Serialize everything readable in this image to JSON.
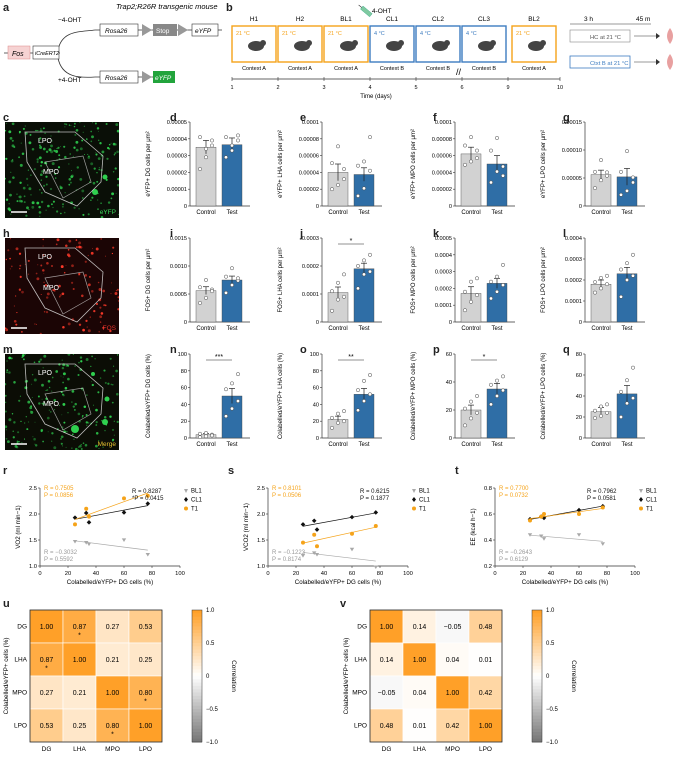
{
  "panel_labels": {
    "a": "a",
    "b": "b",
    "c": "c",
    "d": "d",
    "e": "e",
    "f": "f",
    "g": "g",
    "h": "h",
    "i": "i",
    "j": "j",
    "k": "k",
    "l": "l",
    "m": "m",
    "n": "n",
    "o": "o",
    "p": "p",
    "q": "q",
    "r": "r",
    "s": "s",
    "t": "t",
    "u": "u",
    "v": "v"
  },
  "panel_a": {
    "title": "Trap2;R26R transgenic mouse",
    "minus": "−4-OHT",
    "plus": "+4-OHT",
    "fos": "Fos",
    "icreer": "iCreERT2",
    "rosa": "Rosa26",
    "stop": "Stop",
    "eyfp": "eYFP"
  },
  "panel_b": {
    "injection": "4-OHT",
    "axis": "Time (days)",
    "days": [
      "1",
      "2",
      "3",
      "4",
      "5",
      "6",
      "9",
      "10"
    ],
    "sessions": [
      {
        "name": "H1",
        "temp": "21 °C",
        "context": "Context A"
      },
      {
        "name": "H2",
        "temp": "21 °C",
        "context": "Context A"
      },
      {
        "name": "BL1",
        "temp": "21 °C",
        "context": "Context A"
      },
      {
        "name": "CL1",
        "temp": "4 °C",
        "context": "Context B"
      },
      {
        "name": "CL2",
        "temp": "4 °C",
        "context": "Context B"
      },
      {
        "name": "CL3",
        "temp": "4 °C",
        "context": "Context B"
      },
      {
        "name": "BL2",
        "temp": "21 °C",
        "context": "Context A"
      }
    ],
    "tail_time1": "3 h",
    "tail_time2": "45 m",
    "hc": "HC at 21 °C",
    "ctxt": "Ctxt B at 21 °C"
  },
  "images": {
    "c": {
      "lpo": "LPO",
      "mpo": "MPO",
      "stain": "eYFP"
    },
    "h": {
      "lpo": "LPO",
      "mpo": "MPO",
      "stain": "FOS"
    },
    "m": {
      "lpo": "LPO",
      "mpo": "MPO",
      "stain": "Merge"
    }
  },
  "colors": {
    "control": "#d2d2d2",
    "test": "#2f6ea6",
    "orange": "#f5a31a",
    "blue": "#3d7cc0",
    "eyfp_green": "#1fae3c",
    "fos_red": "#e3322b"
  },
  "chart_data": [
    {
      "id": "d",
      "type": "bar",
      "categories": [
        "Control",
        "Test"
      ],
      "values": [
        3.5e-05,
        3.65e-05
      ],
      "errors": [
        4e-06,
        4e-06
      ],
      "ylim": [
        0,
        5e-05
      ],
      "ticks": [
        "0",
        "0.00001",
        "0.00002",
        "0.00003",
        "0.00004",
        "0.00005"
      ],
      "ylabel": "eYFP+ DG cells per μm²",
      "points": [
        [
          2.2e-05,
          3.4e-05,
          3.9e-05,
          4.1e-05,
          2.9e-05,
          3.6e-05
        ],
        [
          2.9e-05,
          3.3e-05,
          3.9e-05,
          4.1e-05,
          3.6e-05,
          4.2e-05
        ]
      ]
    },
    {
      "id": "e",
      "type": "bar",
      "categories": [
        "Control",
        "Test"
      ],
      "values": [
        4e-05,
        3.75e-05
      ],
      "errors": [
        1e-05,
        8e-06
      ],
      "ylim": [
        0,
        0.0001
      ],
      "ticks": [
        "0",
        "0.00002",
        "0.00004",
        "0.00006",
        "0.00008",
        "0.0001"
      ],
      "ylabel": "eYFP+ LHA cells per μm²",
      "points": [
        [
          2e-05,
          2.5e-05,
          4.4e-05,
          5.1e-05,
          7.1e-05,
          3.2e-05
        ],
        [
          1.2e-05,
          2.1e-05,
          4.2e-05,
          4.8e-05,
          5.3e-05,
          8.2e-05
        ]
      ]
    },
    {
      "id": "f",
      "type": "bar",
      "categories": [
        "Control",
        "Test"
      ],
      "values": [
        6.2e-05,
        5e-05
      ],
      "errors": [
        8e-06,
        1e-05
      ],
      "ylim": [
        0,
        0.0001
      ],
      "ticks": [
        "0",
        "0.00002",
        "0.00004",
        "0.00006",
        "0.00008",
        "0.0001"
      ],
      "ylabel": "eYFP+ MPO cells per μm²",
      "points": [
        [
          4.9e-05,
          5.3e-05,
          6.6e-05,
          7.2e-05,
          8.2e-05,
          5.7e-05
        ],
        [
          2.8e-05,
          4.1e-05,
          4.7e-05,
          6.6e-05,
          8.1e-05,
          3.6e-05
        ]
      ]
    },
    {
      "id": "g",
      "type": "bar",
      "categories": [
        "Control",
        "Test"
      ],
      "values": [
        5.6e-05,
        5.2e-05
      ],
      "errors": [
        8e-06,
        1.5e-05
      ],
      "ylim": [
        0,
        0.00015
      ],
      "ticks": [
        "0",
        "0.00005",
        "0.00010",
        "0.00015"
      ],
      "ylabel": "eYFP+ LPO cells per μm²",
      "points": [
        [
          3.2e-05,
          4.6e-05,
          5.4e-05,
          6.1e-05,
          8.2e-05,
          6e-05
        ],
        [
          2e-05,
          2.7e-05,
          4.2e-05,
          6.1e-05,
          9.8e-05,
          5.1e-05
        ]
      ]
    },
    {
      "id": "i",
      "type": "bar",
      "categories": [
        "Control",
        "Test"
      ],
      "values": [
        0.00056,
        0.00075
      ],
      "errors": [
        7e-05,
        7e-05
      ],
      "ylim": [
        0,
        0.0015
      ],
      "ticks": [
        "0",
        "0.0005",
        "0.0010",
        "0.0015"
      ],
      "ylabel": "FOS+ DG cells per μm²",
      "points": [
        [
          0.00034,
          0.00043,
          0.00058,
          0.00062,
          0.00075,
          0.00055
        ],
        [
          0.00052,
          0.00066,
          0.00074,
          0.00081,
          0.00096,
          0.00078
        ]
      ]
    },
    {
      "id": "j",
      "type": "bar",
      "categories": [
        "Control",
        "Test"
      ],
      "values": [
        0.000105,
        0.00019
      ],
      "errors": [
        2e-05,
        2e-05
      ],
      "ylim": [
        0,
        0.0003
      ],
      "ticks": [
        "0",
        "0.0001",
        "0.0002",
        "0.0003"
      ],
      "ylabel": "FOS+ LHA cells per μm²",
      "sig": "*",
      "points": [
        [
          4e-05,
          8e-05,
          9e-05,
          0.00011,
          0.00014,
          0.00017
        ],
        [
          0.00012,
          0.00017,
          0.00018,
          0.0002,
          0.00022,
          0.00024
        ]
      ]
    },
    {
      "id": "k",
      "type": "bar",
      "categories": [
        "Control",
        "Test"
      ],
      "values": [
        0.00017,
        0.00023
      ],
      "errors": [
        4e-05,
        3e-05
      ],
      "ylim": [
        0,
        0.0005
      ],
      "ticks": [
        "0",
        "0.0001",
        "0.0002",
        "0.0003",
        "0.0004",
        "0.0005"
      ],
      "ylabel": "FOS+ MPO cells per μm²",
      "points": [
        [
          7e-05,
          0.00012,
          0.00016,
          0.00018,
          0.00024,
          0.00026
        ],
        [
          0.00014,
          0.00018,
          0.00022,
          0.00024,
          0.00027,
          0.00034
        ]
      ]
    },
    {
      "id": "l",
      "type": "bar",
      "categories": [
        "Control",
        "Test"
      ],
      "values": [
        0.00018,
        0.00023
      ],
      "errors": [
        2e-05,
        3e-05
      ],
      "ylim": [
        0,
        0.0004
      ],
      "ticks": [
        "0",
        "0.0001",
        "0.0002",
        "0.0003",
        "0.0004"
      ],
      "ylabel": "FOS+ LPO cells per μm²",
      "points": [
        [
          0.00014,
          0.00016,
          0.00018,
          0.00019,
          0.00021,
          0.00022
        ],
        [
          0.00012,
          0.0002,
          0.00022,
          0.00025,
          0.00028,
          0.00032
        ]
      ]
    },
    {
      "id": "n",
      "type": "bar",
      "categories": [
        "Control",
        "Test"
      ],
      "values": [
        4,
        50
      ],
      "errors": [
        1.5,
        9
      ],
      "ylim": [
        0,
        100
      ],
      "ticks": [
        "0",
        "20",
        "40",
        "60",
        "80",
        "100"
      ],
      "ylabel": "Colabelled/eYFP+ DG cells (%)",
      "sig": "***",
      "points": [
        [
          1,
          2,
          4,
          5,
          6,
          3
        ],
        [
          26,
          35,
          44,
          58,
          65,
          76
        ]
      ]
    },
    {
      "id": "o",
      "type": "bar",
      "categories": [
        "Control",
        "Test"
      ],
      "values": [
        22,
        52
      ],
      "errors": [
        4,
        7
      ],
      "ylim": [
        0,
        100
      ],
      "ticks": [
        "0",
        "20",
        "40",
        "60",
        "80",
        "100"
      ],
      "ylabel": "Colabelled/eYFP+ LHA cells (%)",
      "sig": "**",
      "points": [
        [
          12,
          18,
          20,
          24,
          29,
          32
        ],
        [
          33,
          44,
          52,
          57,
          68,
          75
        ]
      ]
    },
    {
      "id": "p",
      "type": "bar",
      "categories": [
        "Control",
        "Test"
      ],
      "values": [
        20,
        35
      ],
      "errors": [
        3.5,
        4
      ],
      "ylim": [
        0,
        60
      ],
      "ticks": [
        "0",
        "20",
        "40",
        "60"
      ],
      "ylabel": "Colabelled/eYFP+ MPO cells (%)",
      "sig": "*",
      "points": [
        [
          9,
          14,
          18,
          21,
          26,
          30
        ],
        [
          24,
          30,
          34,
          38,
          41,
          44
        ]
      ]
    },
    {
      "id": "q",
      "type": "bar",
      "categories": [
        "Control",
        "Test"
      ],
      "values": [
        25,
        42
      ],
      "errors": [
        4,
        8
      ],
      "ylim": [
        0,
        80
      ],
      "ticks": [
        "0",
        "20",
        "40",
        "60",
        "80"
      ],
      "ylabel": "Colabelled/eYFP+ LPO cells (%)",
      "points": [
        [
          19,
          21,
          24,
          26,
          30,
          32
        ],
        [
          20,
          33,
          38,
          44,
          55,
          67
        ]
      ]
    },
    {
      "id": "r",
      "type": "scatter",
      "xlabel": "Colabelled/eYFP+ DG cells (%)",
      "ylabel": "VO2 (ml min−1)",
      "xlim": [
        0,
        100
      ],
      "ylim": [
        1,
        2.5
      ],
      "xticks": [
        "0",
        "20",
        "40",
        "60",
        "80",
        "100"
      ],
      "yticks": [
        "1.0",
        "1.5",
        "2.0",
        "2.5"
      ],
      "series": [
        {
          "name": "BL1",
          "color": "#a8a8a8",
          "marker": "tri",
          "x": [
            25,
            33,
            60,
            77,
            35
          ],
          "y": [
            1.47,
            1.45,
            1.5,
            1.22,
            1.42
          ],
          "R": "R = −0.3032",
          "P": "P = 0.5592"
        },
        {
          "name": "CL1",
          "color": "#111111",
          "marker": "dia",
          "x": [
            25,
            33,
            60,
            77,
            35
          ],
          "y": [
            1.93,
            2.02,
            2.03,
            2.2,
            1.84
          ],
          "R": "R = 0.8287",
          "P": "*P = 0.0415"
        },
        {
          "name": "T1",
          "color": "#f5a31a",
          "marker": "dot",
          "x": [
            25,
            33,
            60,
            77,
            35
          ],
          "y": [
            1.8,
            2.1,
            2.3,
            2.35,
            1.95
          ],
          "R": "R = 0.7505",
          "P": "P = 0.0856"
        }
      ]
    },
    {
      "id": "s",
      "type": "scatter",
      "xlabel": "Colabelled/eYFP+ DG cells (%)",
      "ylabel": "VCO2 (ml min−1)",
      "xlim": [
        0,
        100
      ],
      "ylim": [
        1,
        2.5
      ],
      "xticks": [
        "0",
        "20",
        "40",
        "60",
        "80",
        "100"
      ],
      "yticks": [
        "1.0",
        "1.5",
        "2.0",
        "2.5"
      ],
      "series": [
        {
          "name": "BL1",
          "color": "#a8a8a8",
          "marker": "tri",
          "x": [
            25,
            33,
            60,
            77,
            35
          ],
          "y": [
            1.2,
            1.25,
            1.32,
            0.98,
            1.22
          ],
          "R": "R = −0.1223",
          "P": "P = 0.8174"
        },
        {
          "name": "CL1",
          "color": "#111111",
          "marker": "dia",
          "x": [
            25,
            33,
            60,
            77,
            35
          ],
          "y": [
            1.8,
            1.87,
            1.94,
            2.03,
            1.7
          ],
          "R": "R = 0.6215",
          "P": "P = 0.1877"
        },
        {
          "name": "T1",
          "color": "#f5a31a",
          "marker": "dot",
          "x": [
            25,
            33,
            60,
            77,
            35
          ],
          "y": [
            1.45,
            1.6,
            1.62,
            1.77,
            1.38
          ],
          "R": "R = 0.8101",
          "P": "P = 0.0506"
        }
      ]
    },
    {
      "id": "t",
      "type": "scatter",
      "xlabel": "Colabelled/eYFP+ DG cells (%)",
      "ylabel": "EE (kcal h−1)",
      "xlim": [
        0,
        100
      ],
      "ylim": [
        0.2,
        0.8
      ],
      "xticks": [
        "0",
        "20",
        "40",
        "60",
        "80",
        "100"
      ],
      "yticks": [
        "0.2",
        "0.4",
        "0.6",
        "0.8"
      ],
      "series": [
        {
          "name": "BL1",
          "color": "#a8a8a8",
          "marker": "tri",
          "x": [
            25,
            33,
            60,
            77,
            35
          ],
          "y": [
            0.44,
            0.43,
            0.44,
            0.37,
            0.41
          ],
          "R": "R = −0.2643",
          "P": "P = 0.6129"
        },
        {
          "name": "CL1",
          "color": "#111111",
          "marker": "dia",
          "x": [
            25,
            33,
            60,
            77,
            35
          ],
          "y": [
            0.56,
            0.58,
            0.63,
            0.66,
            0.57
          ],
          "R": "R = 0.7962",
          "P": "P = 0.0581"
        },
        {
          "name": "T1",
          "color": "#f5a31a",
          "marker": "dot",
          "x": [
            25,
            33,
            60,
            77,
            35
          ],
          "y": [
            0.55,
            0.58,
            0.6,
            0.65,
            0.6
          ],
          "R": "R = 0.7700",
          "P": "P = 0.0732"
        }
      ]
    },
    {
      "id": "u",
      "type": "heatmap",
      "labels": [
        "DG",
        "LHA",
        "MPO",
        "LPO"
      ],
      "ylabel": "Colabelled/eYFP+ cells (%)",
      "cbar": "Correlation",
      "cbticks": [
        "1.0",
        "0.5",
        "0",
        "−0.5",
        "−1.0"
      ],
      "matrix": [
        [
          "1.00",
          "0.87",
          "0.27",
          "0.53"
        ],
        [
          "0.87",
          "1.00",
          "0.21",
          "0.25"
        ],
        [
          "0.27",
          "0.21",
          "1.00",
          "0.80"
        ],
        [
          "0.53",
          "0.25",
          "0.80",
          "1.00"
        ]
      ],
      "values": [
        [
          1,
          0.87,
          0.27,
          0.53
        ],
        [
          0.87,
          1,
          0.21,
          0.25
        ],
        [
          0.27,
          0.21,
          1,
          0.8
        ],
        [
          0.53,
          0.25,
          0.8,
          1
        ]
      ],
      "stars": [
        [
          0,
          1
        ],
        [
          1,
          0
        ],
        [
          2,
          3
        ],
        [
          3,
          2
        ]
      ]
    },
    {
      "id": "v",
      "type": "heatmap",
      "labels": [
        "DG",
        "LHA",
        "MPO",
        "LPO"
      ],
      "ylabel": "Colabelled/eYFP+ cells (%)",
      "cbar": "Correlation",
      "cbticks": [
        "1.0",
        "0.5",
        "0",
        "−0.5",
        "−1.0"
      ],
      "matrix": [
        [
          "1.00",
          "0.14",
          "−0.05",
          "0.48"
        ],
        [
          "0.14",
          "1.00",
          "0.04",
          "0.01"
        ],
        [
          "−0.05",
          "0.04",
          "1.00",
          "0.42"
        ],
        [
          "0.48",
          "0.01",
          "0.42",
          "1.00"
        ]
      ],
      "values": [
        [
          1,
          0.14,
          -0.05,
          0.48
        ],
        [
          0.14,
          1,
          0.04,
          0.01
        ],
        [
          -0.05,
          0.04,
          1,
          0.42
        ],
        [
          0.48,
          0.01,
          0.42,
          1
        ]
      ],
      "stars": []
    }
  ]
}
